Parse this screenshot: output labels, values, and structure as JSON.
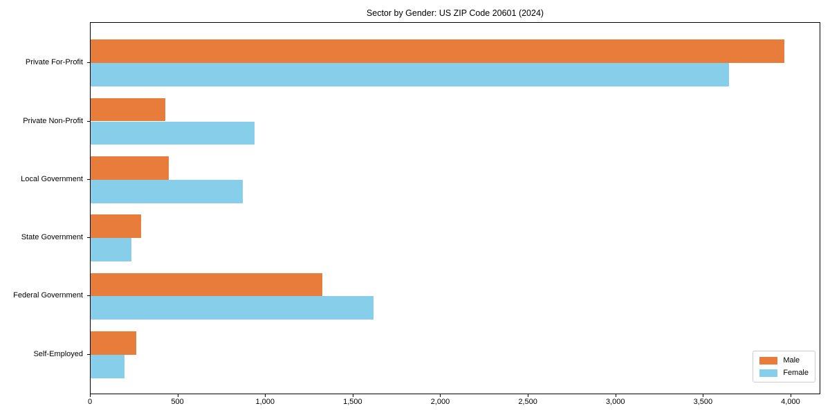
{
  "chart_data": {
    "type": "bar",
    "orientation": "horizontal",
    "title": "Sector by Gender: US ZIP Code 20601 (2024)",
    "categories": [
      "Private For-Profit",
      "Private Non-Profit",
      "Local Government",
      "State Government",
      "Federal Government",
      "Self-Employed"
    ],
    "series": [
      {
        "name": "Male",
        "color": "#E87D3B",
        "values": [
          3970,
          427,
          447,
          289,
          1324,
          261
        ]
      },
      {
        "name": "Female",
        "color": "#87CEEB",
        "values": [
          3650,
          937,
          870,
          233,
          1617,
          194
        ]
      }
    ],
    "xlabel": "",
    "ylabel": "",
    "xlim": [
      0,
      4170
    ],
    "x_ticks": [
      0,
      500,
      1000,
      1500,
      2000,
      2500,
      3000,
      3500,
      4000
    ],
    "x_tick_labels": [
      "0",
      "500",
      "1,000",
      "1,500",
      "2,000",
      "2,500",
      "3,000",
      "3,500",
      "4,000"
    ],
    "grid": false,
    "legend_position": "lower right",
    "spine_color": "#000000",
    "legend_border_color": "#cccccc"
  }
}
